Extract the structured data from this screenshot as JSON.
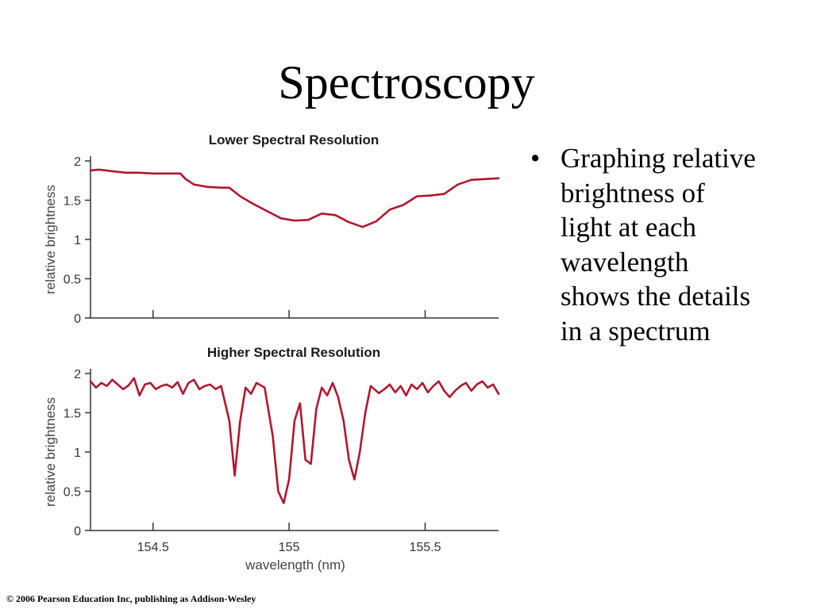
{
  "slide": {
    "title": "Spectroscopy",
    "bullet_symbol": "•",
    "bullet_text": "Graphing relative brightness of light at each wavelength shows the details in a spectrum",
    "footer": "© 2006 Pearson Education Inc, publishing as Addison-Wesley"
  },
  "colors": {
    "series": "#b0172f",
    "axis": "#333333"
  },
  "chart_data": [
    {
      "type": "line",
      "title": "Lower Spectral Resolution",
      "xlabel": "",
      "ylabel": "relative brightness",
      "xlim": [
        154.27,
        155.77
      ],
      "ylim": [
        0,
        2
      ],
      "yticks": [
        {
          "value": 0,
          "label": "0"
        },
        {
          "value": 0.5,
          "label": "0.5"
        },
        {
          "value": 1,
          "label": "1"
        },
        {
          "value": 1.5,
          "label": "1.5"
        },
        {
          "value": 2,
          "label": "2"
        }
      ],
      "xticks": [
        {
          "value": 154.5,
          "label": ""
        },
        {
          "value": 155,
          "label": ""
        },
        {
          "value": 155.5,
          "label": ""
        }
      ],
      "grid": false,
      "series": [
        {
          "x": [
            154.27,
            154.3,
            154.35,
            154.4,
            154.45,
            154.5,
            154.6,
            154.62,
            154.65,
            154.7,
            154.75,
            154.78,
            154.82,
            154.87,
            154.92,
            154.97,
            155.02,
            155.07,
            155.12,
            155.17,
            155.22,
            155.27,
            155.32,
            155.37,
            155.42,
            155.47,
            155.52,
            155.57,
            155.62,
            155.67,
            155.72,
            155.77
          ],
          "y": [
            1.88,
            1.89,
            1.87,
            1.85,
            1.85,
            1.84,
            1.84,
            1.77,
            1.7,
            1.67,
            1.66,
            1.66,
            1.55,
            1.45,
            1.36,
            1.27,
            1.24,
            1.25,
            1.33,
            1.31,
            1.22,
            1.16,
            1.23,
            1.38,
            1.44,
            1.55,
            1.56,
            1.58,
            1.7,
            1.76,
            1.77,
            1.78
          ]
        }
      ]
    },
    {
      "type": "line",
      "title": "Higher Spectral Resolution",
      "xlabel": "wavelength (nm)",
      "ylabel": "relative brightness",
      "xlim": [
        154.27,
        155.77
      ],
      "ylim": [
        0,
        2
      ],
      "yticks": [
        {
          "value": 0,
          "label": "0"
        },
        {
          "value": 0.5,
          "label": "0.5"
        },
        {
          "value": 1,
          "label": "1"
        },
        {
          "value": 1.5,
          "label": "1.5"
        },
        {
          "value": 2,
          "label": "2"
        }
      ],
      "xticks": [
        {
          "value": 154.5,
          "label": "154.5"
        },
        {
          "value": 155,
          "label": "155"
        },
        {
          "value": 155.5,
          "label": "155.5"
        }
      ],
      "grid": false,
      "series": [
        {
          "x": [
            154.27,
            154.29,
            154.31,
            154.33,
            154.35,
            154.37,
            154.39,
            154.41,
            154.43,
            154.45,
            154.47,
            154.49,
            154.51,
            154.53,
            154.55,
            154.57,
            154.59,
            154.61,
            154.63,
            154.65,
            154.67,
            154.69,
            154.71,
            154.73,
            154.75,
            154.78,
            154.8,
            154.82,
            154.84,
            154.86,
            154.88,
            154.91,
            154.94,
            154.96,
            154.98,
            155.0,
            155.02,
            155.04,
            155.06,
            155.08,
            155.1,
            155.12,
            155.14,
            155.16,
            155.18,
            155.2,
            155.22,
            155.24,
            155.26,
            155.28,
            155.3,
            155.33,
            155.35,
            155.37,
            155.39,
            155.41,
            155.43,
            155.45,
            155.47,
            155.49,
            155.51,
            155.53,
            155.55,
            155.57,
            155.59,
            155.61,
            155.63,
            155.65,
            155.67,
            155.69,
            155.71,
            155.73,
            155.75,
            155.77
          ],
          "y": [
            1.9,
            1.82,
            1.88,
            1.84,
            1.92,
            1.86,
            1.8,
            1.85,
            1.94,
            1.72,
            1.86,
            1.88,
            1.8,
            1.84,
            1.86,
            1.82,
            1.89,
            1.74,
            1.88,
            1.92,
            1.8,
            1.84,
            1.86,
            1.8,
            1.84,
            1.4,
            0.7,
            1.4,
            1.82,
            1.74,
            1.88,
            1.82,
            1.2,
            0.5,
            0.35,
            0.65,
            1.4,
            1.62,
            0.9,
            0.85,
            1.55,
            1.82,
            1.72,
            1.88,
            1.7,
            1.4,
            0.9,
            0.65,
            1.0,
            1.5,
            1.84,
            1.75,
            1.8,
            1.86,
            1.76,
            1.84,
            1.72,
            1.86,
            1.8,
            1.88,
            1.76,
            1.84,
            1.9,
            1.78,
            1.7,
            1.78,
            1.84,
            1.88,
            1.78,
            1.86,
            1.9,
            1.82,
            1.86,
            1.74
          ]
        }
      ]
    }
  ]
}
